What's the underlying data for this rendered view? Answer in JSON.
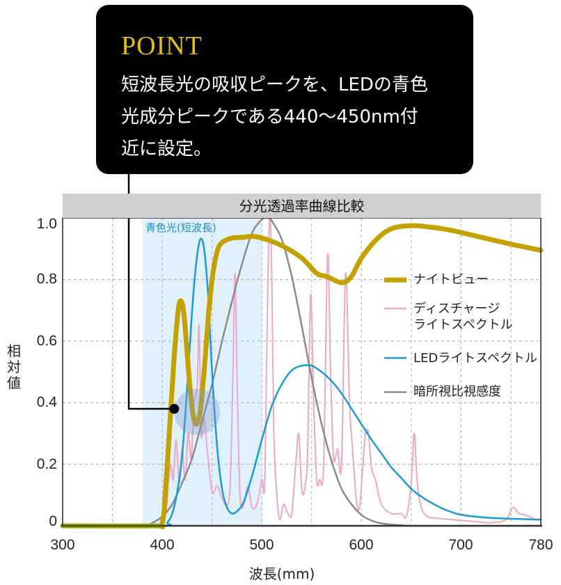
{
  "callout": {
    "title": "POINT",
    "lines": [
      "短波長光の吸収ピークを、LEDの青色",
      "光成分ピークである440〜450nm付",
      "近に設定。"
    ],
    "title_color": "#e6bd14"
  },
  "chart_title": "分光透過率曲線比較",
  "band_label": "青色光(短波長)",
  "y_axis_label": "相対値",
  "x_axis_label": "波長(mm)",
  "y_ticks": [
    "1.0",
    "0.8",
    "0.6",
    "0.4",
    "0.2",
    "0"
  ],
  "x_ticks": [
    "300",
    "400",
    "500",
    "600",
    "700",
    "780"
  ],
  "legend": [
    {
      "label": "ナイトビュー",
      "color": "#c4a000"
    },
    {
      "label_line1": "ディスチャージ",
      "label_line2": "ライトスペクトル",
      "color": "#eba8c4"
    },
    {
      "label": "LEDライトスペクトル",
      "color": "#1a9ad8"
    },
    {
      "label": "暗所視比視感度",
      "color": "#8a8a8a"
    }
  ],
  "chart_data": {
    "type": "line",
    "title": "分光透過率曲線比較",
    "xlabel": "波長(mm)",
    "ylabel": "相対値",
    "xlim": [
      300,
      780
    ],
    "ylim": [
      0,
      1.0
    ],
    "x_ticks": [
      300,
      400,
      500,
      600,
      700,
      780
    ],
    "y_ticks": [
      0,
      0.2,
      0.4,
      0.6,
      0.8,
      1.0
    ],
    "grid": true,
    "legend_position": "right-center",
    "shaded_band": {
      "label": "青色光(短波長)",
      "x_range": [
        380,
        500
      ],
      "color": "#e0f1fb"
    },
    "annotation": {
      "point": [
        412,
        0.38
      ],
      "highlight_center": [
        435,
        0.37
      ],
      "text": "POINT"
    },
    "series": [
      {
        "name": "ナイトビュー",
        "color": "#c4a000",
        "points": [
          [
            300,
            0
          ],
          [
            390,
            0
          ],
          [
            400,
            0.01
          ],
          [
            404,
            0.15
          ],
          [
            408,
            0.35
          ],
          [
            412,
            0.55
          ],
          [
            416,
            0.7
          ],
          [
            419,
            0.73
          ],
          [
            422,
            0.68
          ],
          [
            426,
            0.52
          ],
          [
            430,
            0.38
          ],
          [
            434,
            0.33
          ],
          [
            438,
            0.37
          ],
          [
            442,
            0.5
          ],
          [
            446,
            0.67
          ],
          [
            450,
            0.8
          ],
          [
            455,
            0.89
          ],
          [
            460,
            0.92
          ],
          [
            470,
            0.935
          ],
          [
            480,
            0.937
          ],
          [
            490,
            0.94
          ],
          [
            500,
            0.935
          ],
          [
            520,
            0.91
          ],
          [
            540,
            0.87
          ],
          [
            555,
            0.82
          ],
          [
            565,
            0.81
          ],
          [
            575,
            0.795
          ],
          [
            582,
            0.79
          ],
          [
            590,
            0.81
          ],
          [
            600,
            0.87
          ],
          [
            615,
            0.93
          ],
          [
            630,
            0.965
          ],
          [
            650,
            0.975
          ],
          [
            670,
            0.97
          ],
          [
            690,
            0.96
          ],
          [
            710,
            0.945
          ],
          [
            730,
            0.93
          ],
          [
            750,
            0.915
          ],
          [
            765,
            0.905
          ],
          [
            780,
            0.895
          ]
        ]
      },
      {
        "name": "ディスチャージライトスペクトル",
        "color": "#eba8c4",
        "points": [
          [
            400,
            0.02
          ],
          [
            404,
            0.05
          ],
          [
            408,
            0.2
          ],
          [
            411,
            0.15
          ],
          [
            414,
            0.28
          ],
          [
            417,
            0.14
          ],
          [
            420,
            0.25
          ],
          [
            423,
            0.15
          ],
          [
            426,
            0.3
          ],
          [
            429,
            0.22
          ],
          [
            432,
            0.4
          ],
          [
            435,
            0.45
          ],
          [
            437,
            0.65
          ],
          [
            439,
            0.3
          ],
          [
            442,
            0.35
          ],
          [
            445,
            0.25
          ],
          [
            450,
            0.11
          ],
          [
            455,
            0.13
          ],
          [
            460,
            0.09
          ],
          [
            464,
            0.07
          ],
          [
            468,
            0.12
          ],
          [
            471,
            0.5
          ],
          [
            473,
            0.82
          ],
          [
            475,
            0.5
          ],
          [
            478,
            0.1
          ],
          [
            482,
            0.07
          ],
          [
            486,
            0.13
          ],
          [
            490,
            0.06
          ],
          [
            495,
            0.07
          ],
          [
            500,
            0.15
          ],
          [
            503,
            0.15
          ],
          [
            506,
            0.8
          ],
          [
            508,
            1.0
          ],
          [
            510,
            0.8
          ],
          [
            512,
            0.3
          ],
          [
            515,
            0.1
          ],
          [
            518,
            0.02
          ],
          [
            522,
            0.07
          ],
          [
            526,
            0.04
          ],
          [
            530,
            0.04
          ],
          [
            534,
            0.2
          ],
          [
            537,
            0.3
          ],
          [
            540,
            0.12
          ],
          [
            543,
            0.12
          ],
          [
            546,
            0.25
          ],
          [
            549,
            0.75
          ],
          [
            552,
            0.4
          ],
          [
            555,
            0.15
          ],
          [
            558,
            0.15
          ],
          [
            562,
            0.2
          ],
          [
            566,
            0.88
          ],
          [
            569,
            0.5
          ],
          [
            572,
            0.22
          ],
          [
            576,
            0.25
          ],
          [
            580,
            0.2
          ],
          [
            584,
            0.82
          ],
          [
            588,
            0.4
          ],
          [
            591,
            0.25
          ],
          [
            595,
            0.08
          ],
          [
            598,
            0.06
          ],
          [
            601,
            0.18
          ],
          [
            604,
            0.3
          ],
          [
            607,
            0.3
          ],
          [
            610,
            0.19
          ],
          [
            614,
            0.15
          ],
          [
            620,
            0.07
          ],
          [
            630,
            0.04
          ],
          [
            640,
            0.04
          ],
          [
            645,
            0.03
          ],
          [
            650,
            0.14
          ],
          [
            653,
            0.3
          ],
          [
            656,
            0.14
          ],
          [
            660,
            0.06
          ],
          [
            666,
            0.03
          ],
          [
            675,
            0.025
          ],
          [
            690,
            0.02
          ],
          [
            710,
            0.015
          ],
          [
            730,
            0.01
          ],
          [
            745,
            0.02
          ],
          [
            752,
            0.06
          ],
          [
            758,
            0.04
          ],
          [
            765,
            0.035
          ],
          [
            775,
            0.02
          ],
          [
            780,
            0.02
          ]
        ]
      },
      {
        "name": "LEDライトスペクトル",
        "color": "#1a9ad8",
        "points": [
          [
            300,
            0
          ],
          [
            400,
            0
          ],
          [
            405,
            0.01
          ],
          [
            410,
            0.04
          ],
          [
            415,
            0.11
          ],
          [
            420,
            0.23
          ],
          [
            425,
            0.45
          ],
          [
            430,
            0.7
          ],
          [
            434,
            0.85
          ],
          [
            438,
            0.93
          ],
          [
            442,
            0.9
          ],
          [
            446,
            0.75
          ],
          [
            450,
            0.5
          ],
          [
            455,
            0.26
          ],
          [
            460,
            0.12
          ],
          [
            465,
            0.06
          ],
          [
            470,
            0.04
          ],
          [
            476,
            0.05
          ],
          [
            482,
            0.08
          ],
          [
            490,
            0.16
          ],
          [
            500,
            0.28
          ],
          [
            510,
            0.39
          ],
          [
            520,
            0.46
          ],
          [
            530,
            0.505
          ],
          [
            540,
            0.52
          ],
          [
            550,
            0.52
          ],
          [
            560,
            0.5
          ],
          [
            570,
            0.47
          ],
          [
            580,
            0.43
          ],
          [
            590,
            0.38
          ],
          [
            600,
            0.33
          ],
          [
            610,
            0.28
          ],
          [
            620,
            0.235
          ],
          [
            630,
            0.19
          ],
          [
            640,
            0.155
          ],
          [
            650,
            0.12
          ],
          [
            660,
            0.095
          ],
          [
            670,
            0.075
          ],
          [
            680,
            0.058
          ],
          [
            690,
            0.045
          ],
          [
            700,
            0.036
          ],
          [
            720,
            0.028
          ],
          [
            740,
            0.024
          ],
          [
            760,
            0.022
          ],
          [
            780,
            0.02
          ]
        ]
      },
      {
        "name": "暗所視比視感度",
        "color": "#8a8a8a",
        "points": [
          [
            300,
            0
          ],
          [
            380,
            0
          ],
          [
            390,
            0.01
          ],
          [
            400,
            0.03
          ],
          [
            410,
            0.07
          ],
          [
            420,
            0.14
          ],
          [
            430,
            0.22
          ],
          [
            440,
            0.34
          ],
          [
            450,
            0.46
          ],
          [
            460,
            0.6
          ],
          [
            470,
            0.73
          ],
          [
            480,
            0.85
          ],
          [
            490,
            0.95
          ],
          [
            500,
            0.995
          ],
          [
            506,
            1.0
          ],
          [
            510,
            0.99
          ],
          [
            520,
            0.93
          ],
          [
            530,
            0.81
          ],
          [
            540,
            0.65
          ],
          [
            550,
            0.48
          ],
          [
            560,
            0.33
          ],
          [
            570,
            0.21
          ],
          [
            580,
            0.12
          ],
          [
            590,
            0.07
          ],
          [
            600,
            0.035
          ],
          [
            610,
            0.017
          ],
          [
            620,
            0.008
          ],
          [
            640,
            0.002
          ],
          [
            660,
            0
          ],
          [
            780,
            0
          ]
        ]
      }
    ]
  }
}
